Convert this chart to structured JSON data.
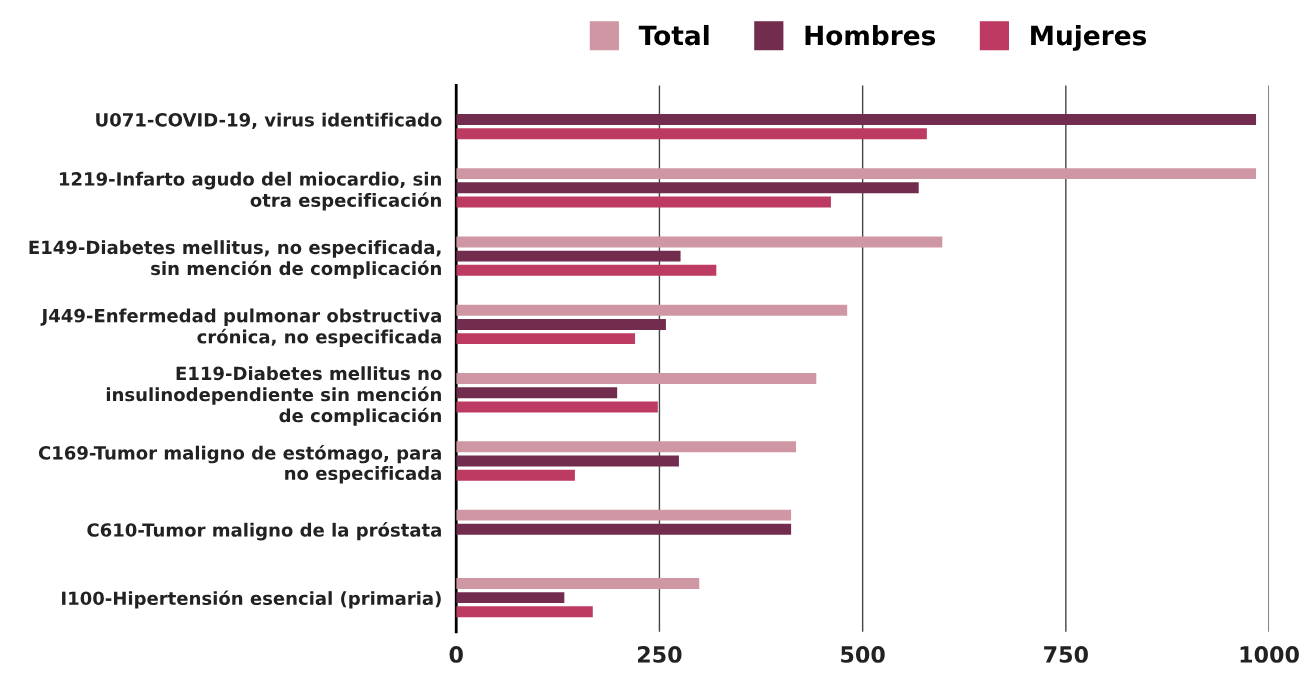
{
  "chart_data": {
    "type": "bar",
    "orientation": "horizontal",
    "categories": [
      "U071-COVID-19, virus identificado",
      "1219-Infarto agudo del miocardio, sin\notra especificación",
      "E149-Diabetes mellitus, no especificada,\nsin mención de complicación",
      "J449-Enfermedad pulmonar obstructiva\ncrónica, no especificada",
      "E119-Diabetes mellitus no\ninsulinodependiente sin mención\nde complicación",
      "C169-Tumor maligno de estómago, para\nno especificada",
      "C610-Tumor maligno de la próstata",
      "I100-Hipertensión esencial (primaria)"
    ],
    "series": [
      {
        "name": "Total",
        "color": "#cf97a4",
        "values": [
          null,
          984,
          598,
          481,
          443,
          418,
          412,
          299
        ]
      },
      {
        "name": "Hombres",
        "color": "#722d4e",
        "values": [
          984,
          569,
          276,
          258,
          198,
          274,
          412,
          133
        ]
      },
      {
        "name": "Mujeres",
        "color": "#bd3a62",
        "values": [
          579,
          461,
          320,
          220,
          248,
          146,
          null,
          168
        ]
      }
    ],
    "xlim": [
      0,
      1000
    ],
    "xticks": [
      0,
      250,
      500,
      750,
      1000
    ],
    "grid": "x",
    "legend": "top"
  }
}
